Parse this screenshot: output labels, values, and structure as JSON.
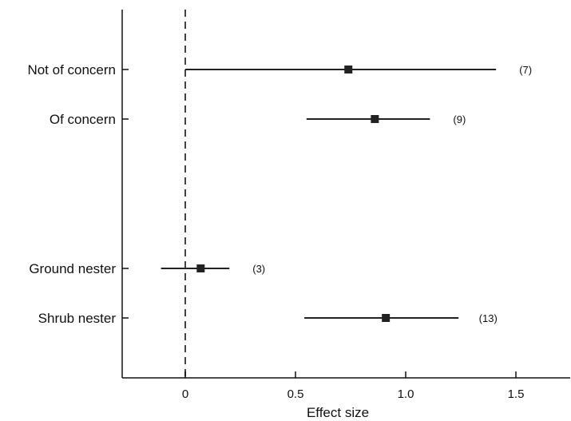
{
  "chart_data": {
    "type": "forest",
    "title": "",
    "xlabel": "Effect size",
    "ylabel": "",
    "xlim": [
      -0.28,
      1.75
    ],
    "xticks": [
      0,
      0.5,
      1.0,
      1.5
    ],
    "xtick_labels": [
      "0",
      "0.5",
      "1.0",
      "1.5"
    ],
    "reference_line": {
      "x": 0,
      "style": "dashed"
    },
    "rows": [
      {
        "label": "Not of concern",
        "estimate": 0.74,
        "ci": [
          0.0,
          1.41
        ],
        "n": "(7)"
      },
      {
        "label": "Of concern",
        "estimate": 0.86,
        "ci": [
          0.55,
          1.11
        ],
        "n": "(9)"
      },
      {
        "label": "Ground nester",
        "estimate": 0.07,
        "ci": [
          -0.11,
          0.2
        ],
        "n": "(3)"
      },
      {
        "label": "Shrub nester",
        "estimate": 0.91,
        "ci": [
          0.54,
          1.24
        ],
        "n": "(13)"
      }
    ],
    "grid": false,
    "legend": "none"
  }
}
